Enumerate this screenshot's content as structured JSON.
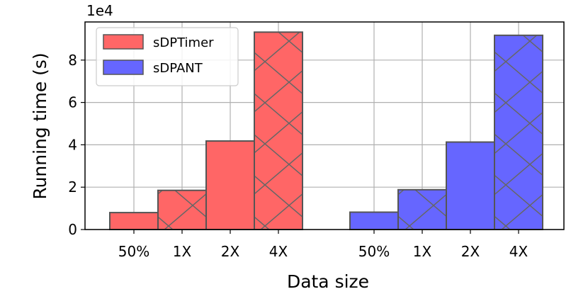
{
  "chart_data": {
    "type": "bar",
    "xlabel": "Data size",
    "ylabel": "Running time (s)",
    "y_multiplier_label": "1e4",
    "ylim": [
      0,
      9.8
    ],
    "y_ticks": [
      0,
      2,
      4,
      6,
      8
    ],
    "grid": true,
    "legend_position": "top-left",
    "groups": [
      {
        "series": "sDPTimer",
        "color": "#ff6666",
        "categories": [
          "50%",
          "1X",
          "2X",
          "4X"
        ],
        "values": [
          0.8,
          1.85,
          4.18,
          9.32
        ],
        "hatched": [
          false,
          true,
          false,
          true
        ]
      },
      {
        "series": "sDPANT",
        "color": "#6666ff",
        "categories": [
          "50%",
          "1X",
          "2X",
          "4X"
        ],
        "values": [
          0.82,
          1.88,
          4.13,
          9.17
        ],
        "hatched": [
          false,
          true,
          false,
          true
        ]
      }
    ],
    "legend": [
      {
        "name": "sDPTimer",
        "color": "#ff6666"
      },
      {
        "name": "sDPANT",
        "color": "#6666ff"
      }
    ]
  }
}
